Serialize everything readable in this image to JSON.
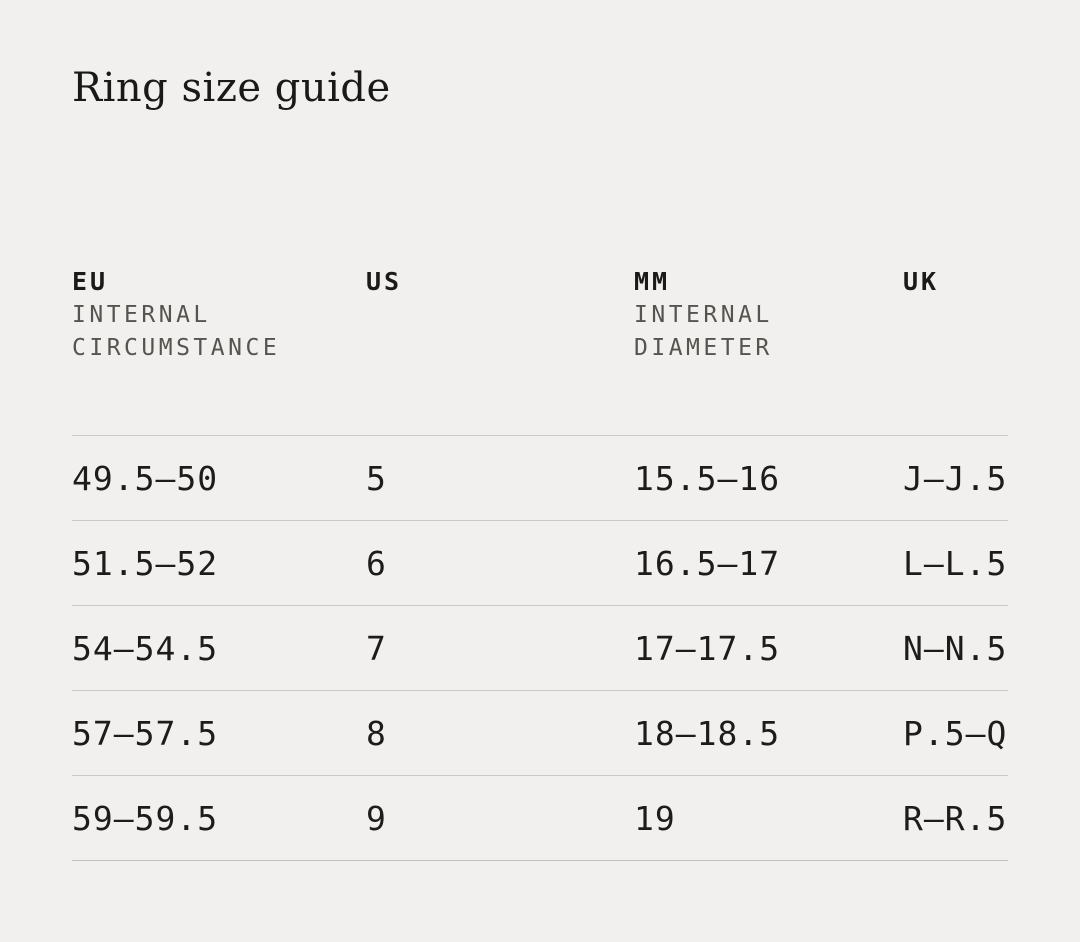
{
  "page": {
    "title": "Ring size guide",
    "colors": {
      "background": "#f1f0ee",
      "text": "#1d1c1a",
      "muted_subheader": "#56544f",
      "rule": "#c9c8c6"
    }
  },
  "table": {
    "columns": [
      {
        "label": "EU",
        "sublabel": "INTERNAL\nCIRCUMSTANCE"
      },
      {
        "label": "US",
        "sublabel": ""
      },
      {
        "label": "MM",
        "sublabel": "INTERNAL\nDIAMETER"
      },
      {
        "label": "UK",
        "sublabel": ""
      }
    ],
    "rows": [
      {
        "eu": "49.5—50",
        "us": "5",
        "mm": "15.5—16",
        "uk": "J—J.5"
      },
      {
        "eu": "51.5—52",
        "us": "6",
        "mm": "16.5—17",
        "uk": "L—L.5"
      },
      {
        "eu": "54—54.5",
        "us": "7",
        "mm": "17—17.5",
        "uk": "N—N.5"
      },
      {
        "eu": "57—57.5",
        "us": "8",
        "mm": "18—18.5",
        "uk": "P.5—Q"
      },
      {
        "eu": "59—59.5",
        "us": "9",
        "mm": "19",
        "uk": "R—R.5"
      }
    ]
  }
}
